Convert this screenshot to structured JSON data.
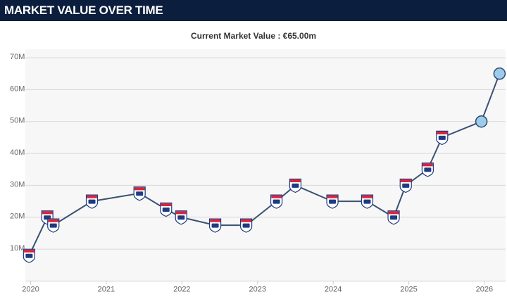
{
  "chart_data": {
    "type": "line",
    "title": "MARKET VALUE OVER TIME",
    "subtitle": "Current Market Value : €65.00m",
    "x": [
      2019.98,
      2020.22,
      2020.3,
      2020.81,
      2021.44,
      2021.79,
      2021.99,
      2022.44,
      2022.85,
      2023.25,
      2023.5,
      2023.99,
      2024.45,
      2024.8,
      2024.96,
      2025.25,
      2025.44,
      2025.96,
      2026.2
    ],
    "y": [
      8,
      20,
      17.5,
      25,
      27.5,
      22.5,
      20,
      17.5,
      17.5,
      25,
      30,
      25,
      25,
      20,
      30,
      35,
      45,
      50,
      65
    ],
    "marker_styles": [
      "shield",
      "shield",
      "shield",
      "shield",
      "shield",
      "shield",
      "shield",
      "shield",
      "shield",
      "shield",
      "shield",
      "shield",
      "shield",
      "shield",
      "shield",
      "shield",
      "shield",
      "circle",
      "circle"
    ],
    "color": "#3a5272",
    "xlim": [
      2019.93,
      2026.28
    ],
    "xticks": [
      2020,
      2021,
      2022,
      2023,
      2024,
      2025,
      2026
    ],
    "ylim": [
      0,
      70
    ],
    "yticks": [
      {
        "value": 10,
        "label": "10M"
      },
      {
        "value": 20,
        "label": "20M"
      },
      {
        "value": 30,
        "label": "30M"
      },
      {
        "value": 40,
        "label": "40M"
      },
      {
        "value": 50,
        "label": "50M"
      },
      {
        "value": 60,
        "label": "60M"
      },
      {
        "value": 70,
        "label": "70M"
      }
    ],
    "grid": true
  }
}
